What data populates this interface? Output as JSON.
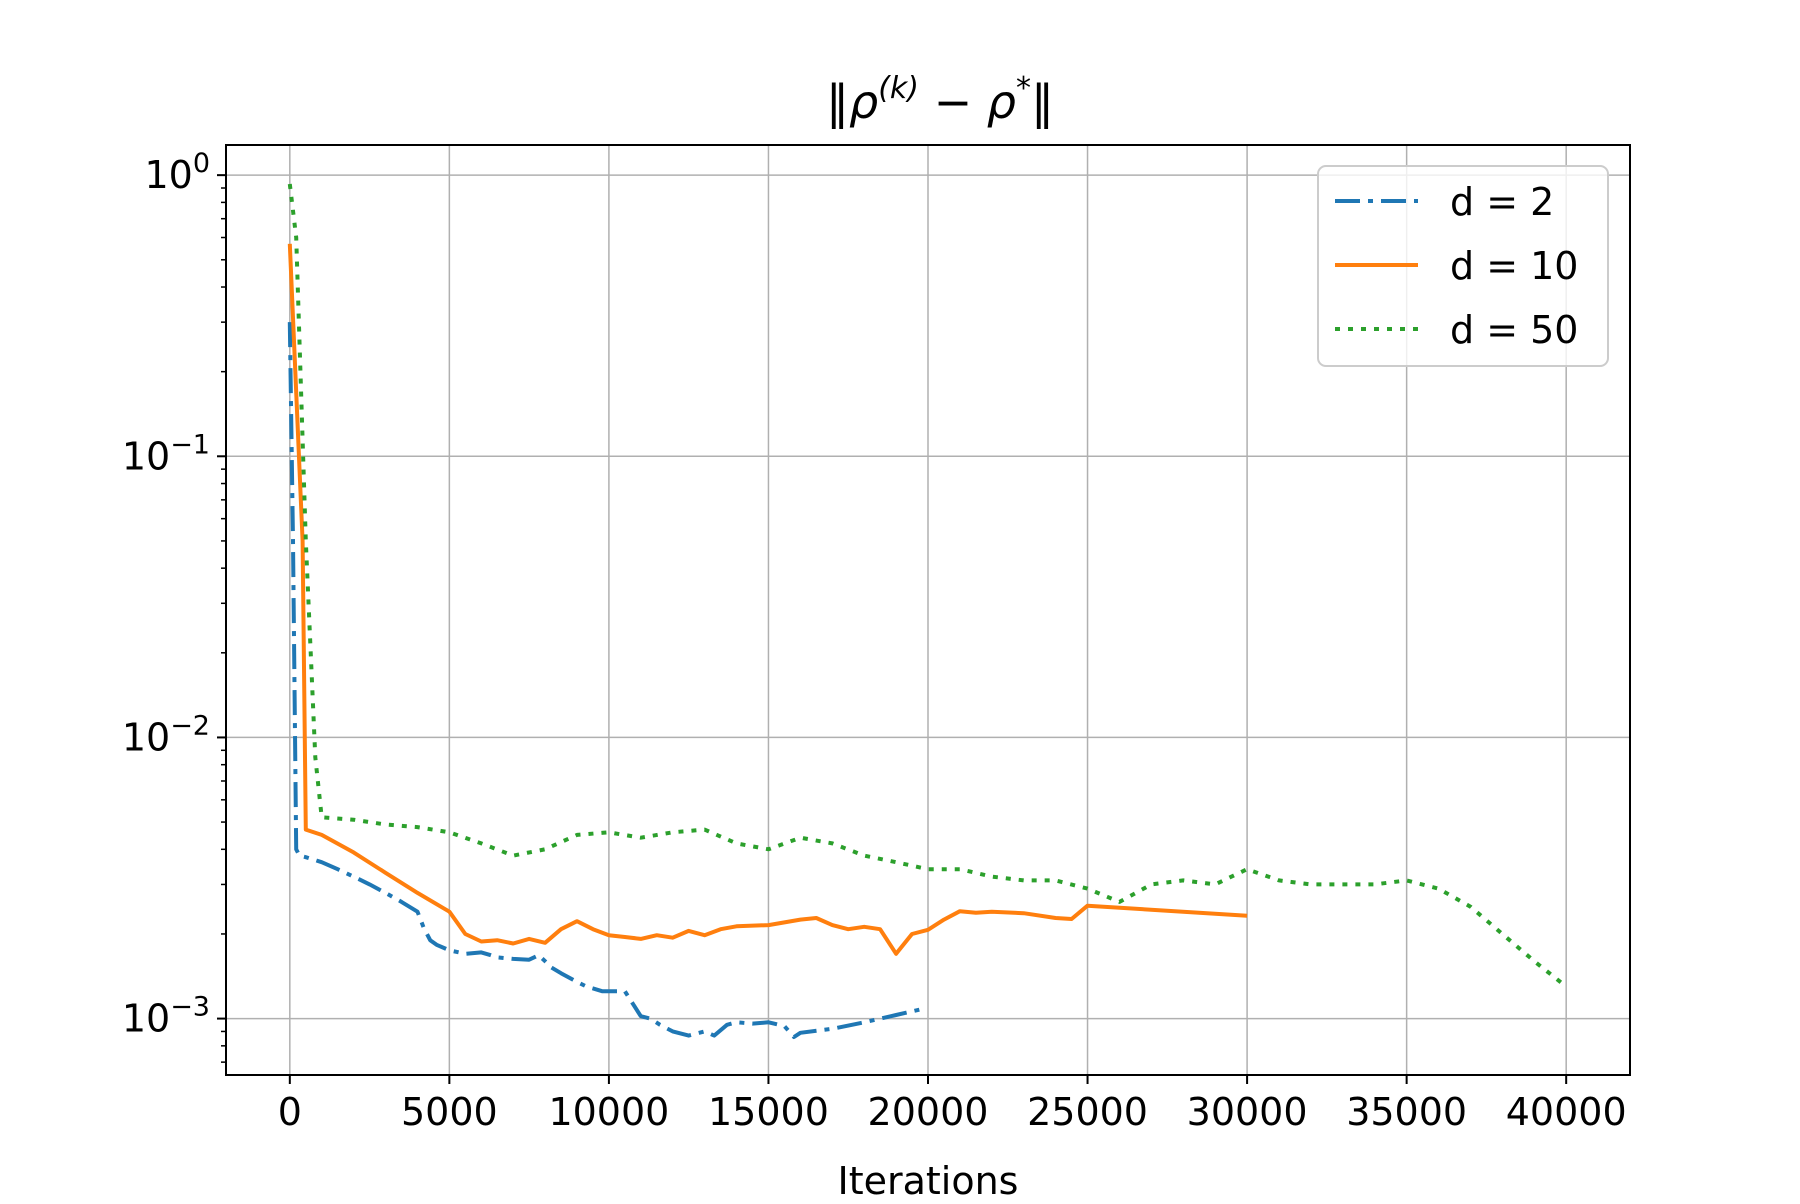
{
  "chart_data": {
    "type": "line",
    "title": "‖ρ(k) − ρ*‖",
    "title_parts": {
      "bar_left": "‖",
      "rho1": "ρ",
      "sup1": "(k)",
      "minus": " − ",
      "rho2": "ρ",
      "sup2": "*",
      "bar_right": "‖"
    },
    "xlabel": "Iterations",
    "ylabel": "",
    "xlim": [
      -2000,
      42000
    ],
    "ylim": [
      0.00063,
      1.28
    ],
    "yscale": "log",
    "grid": true,
    "legend_position": "top-right",
    "x_ticks": [
      0,
      5000,
      10000,
      15000,
      20000,
      25000,
      30000,
      35000,
      40000
    ],
    "x_tick_labels": [
      "0",
      "5000",
      "10000",
      "15000",
      "20000",
      "25000",
      "30000",
      "35000",
      "40000"
    ],
    "y_ticks": [
      {
        "value": 1,
        "base": "10",
        "exp": "0"
      },
      {
        "value": 0.1,
        "base": "10",
        "exp": "−1"
      },
      {
        "value": 0.01,
        "base": "10",
        "exp": "−2"
      },
      {
        "value": 0.001,
        "base": "10",
        "exp": "−3"
      }
    ],
    "series": [
      {
        "name": "d = 2",
        "color": "#1f77b4",
        "style": "dashdot",
        "x": [
          0,
          100,
          200,
          300,
          500,
          1000,
          1500,
          2000,
          2500,
          3000,
          3500,
          4000,
          4200,
          4400,
          4600,
          5000,
          5500,
          6000,
          6300,
          6500,
          7000,
          7500,
          7800,
          8000,
          8200,
          8500,
          9000,
          9300,
          9500,
          9800,
          10000,
          10500,
          11000,
          11300,
          11600,
          12000,
          12500,
          13000,
          13300,
          13700,
          14000,
          14500,
          15000,
          15500,
          15800,
          16000,
          17000,
          18000,
          19000,
          19800
        ],
        "y": [
          0.3,
          0.05,
          0.004,
          0.0038,
          0.00375,
          0.0036,
          0.0034,
          0.0032,
          0.003,
          0.0028,
          0.0026,
          0.0024,
          0.0021,
          0.0019,
          0.00183,
          0.00175,
          0.0017,
          0.00172,
          0.00168,
          0.00165,
          0.00163,
          0.00162,
          0.00168,
          0.0016,
          0.00152,
          0.00145,
          0.00135,
          0.0013,
          0.00128,
          0.00125,
          0.00125,
          0.00125,
          0.00102,
          0.001,
          0.00095,
          0.0009,
          0.00087,
          0.0009,
          0.00087,
          0.00095,
          0.00097,
          0.00096,
          0.00097,
          0.00094,
          0.00086,
          0.00089,
          0.00092,
          0.00097,
          0.00103,
          0.00108
        ]
      },
      {
        "name": "d = 10",
        "color": "#ff7f0e",
        "style": "solid",
        "x": [
          0,
          400,
          500,
          1000,
          2000,
          3000,
          4000,
          5000,
          5500,
          6000,
          6500,
          7000,
          7500,
          8000,
          8500,
          9000,
          9500,
          10000,
          10500,
          11000,
          11500,
          12000,
          12500,
          13000,
          13500,
          14000,
          15000,
          16000,
          16500,
          17000,
          17500,
          18000,
          18500,
          19000,
          19500,
          20000,
          20500,
          21000,
          21500,
          22000,
          23000,
          24000,
          24500,
          25000,
          30000
        ],
        "y": [
          0.57,
          0.05,
          0.0047,
          0.0045,
          0.0039,
          0.0033,
          0.0028,
          0.0024,
          0.002,
          0.00188,
          0.0019,
          0.00185,
          0.00192,
          0.00186,
          0.00208,
          0.00222,
          0.00208,
          0.00198,
          0.00195,
          0.00192,
          0.00198,
          0.00194,
          0.00205,
          0.00198,
          0.00208,
          0.00213,
          0.00215,
          0.00225,
          0.00228,
          0.00215,
          0.00208,
          0.00212,
          0.00208,
          0.0017,
          0.002,
          0.00207,
          0.00225,
          0.00241,
          0.00238,
          0.0024,
          0.00237,
          0.00228,
          0.00226,
          0.00252,
          0.00232
        ]
      },
      {
        "name": "d = 50",
        "color": "#2ca02c",
        "style": "dotted",
        "x": [
          0,
          200,
          500,
          800,
          1000,
          2000,
          3000,
          4000,
          5000,
          6000,
          7000,
          8000,
          9000,
          10000,
          11000,
          12000,
          13000,
          14000,
          15000,
          16000,
          17000,
          18000,
          19000,
          20000,
          21000,
          22000,
          23000,
          24000,
          25000,
          26000,
          27000,
          28000,
          29000,
          30000,
          31000,
          32000,
          33000,
          34000,
          35000,
          36000,
          37000,
          38000,
          39000,
          40000
        ],
        "y": [
          0.93,
          0.6,
          0.05,
          0.0085,
          0.0052,
          0.0051,
          0.0049,
          0.0048,
          0.0046,
          0.0042,
          0.0038,
          0.004,
          0.0045,
          0.0046,
          0.0044,
          0.0046,
          0.0047,
          0.0042,
          0.004,
          0.0044,
          0.0042,
          0.0038,
          0.0036,
          0.0034,
          0.0034,
          0.0032,
          0.0031,
          0.0031,
          0.0029,
          0.0026,
          0.003,
          0.0031,
          0.003,
          0.0034,
          0.0031,
          0.003,
          0.003,
          0.003,
          0.0031,
          0.0029,
          0.0025,
          0.002,
          0.0016,
          0.0013
        ]
      }
    ]
  }
}
